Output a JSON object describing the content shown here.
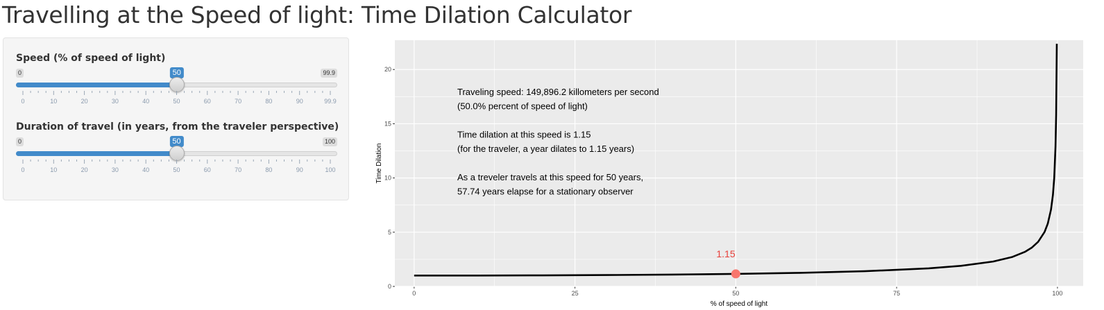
{
  "app": {
    "title": "Travelling at the Speed of light: Time Dilation Calculator"
  },
  "sidebar": {
    "speed_slider": {
      "label": "Speed (% of speed of light)",
      "min_label": "0",
      "max_label": "99.9",
      "value": 50,
      "value_label": "50",
      "min": 0,
      "max": 99.9,
      "tick_labels": [
        "0",
        "10",
        "20",
        "30",
        "40",
        "50",
        "60",
        "70",
        "80",
        "90",
        "99.9"
      ]
    },
    "duration_slider": {
      "label": "Duration of travel (in years, from the traveler perspective)",
      "min_label": "0",
      "max_label": "100",
      "value": 50,
      "value_label": "50",
      "min": 0,
      "max": 100,
      "tick_labels": [
        "0",
        "10",
        "20",
        "30",
        "40",
        "50",
        "60",
        "70",
        "80",
        "90",
        "100"
      ]
    }
  },
  "colors": {
    "slider_accent": "#428bca",
    "plot_panel": "#ebebeb",
    "curve": "#000000",
    "point": "#f8766d",
    "point_label": "#e8413b"
  },
  "chart_data": {
    "type": "line",
    "xlabel": "% of speed of light",
    "ylabel": "Time Dilation",
    "xlim": [
      -3,
      104
    ],
    "ylim": [
      0,
      22.7
    ],
    "x_ticks": [
      "0",
      "25",
      "50",
      "75",
      "100"
    ],
    "y_ticks": [
      "0",
      "5",
      "10",
      "15",
      "20"
    ],
    "grid": true,
    "series": [
      {
        "x": [
          0,
          10,
          20,
          30,
          40,
          50,
          60,
          70,
          80,
          85,
          90,
          93,
          95,
          96,
          97,
          98,
          98.5,
          99,
          99.3,
          99.5,
          99.7,
          99.8,
          99.9
        ],
        "y": [
          1.0,
          1.005,
          1.021,
          1.048,
          1.091,
          1.155,
          1.25,
          1.4,
          1.667,
          1.898,
          2.294,
          2.72,
          3.203,
          3.571,
          4.113,
          5.025,
          5.795,
          7.089,
          8.46,
          10.01,
          12.92,
          15.82,
          22.37
        ]
      }
    ],
    "highlight": {
      "x": 50,
      "y": 1.155,
      "label": "1.15"
    },
    "annotations": [
      "Traveling speed: 149,896.2 killometers per second",
      "(50.0% percent of speed of light)",
      "",
      "Time dilation at this speed is 1.15",
      "(for the traveler, a year dilates to 1.15 years)",
      "",
      "As a treveler travels at this speed for 50 years,",
      "57.74 years elapse for a stationary observer"
    ]
  }
}
